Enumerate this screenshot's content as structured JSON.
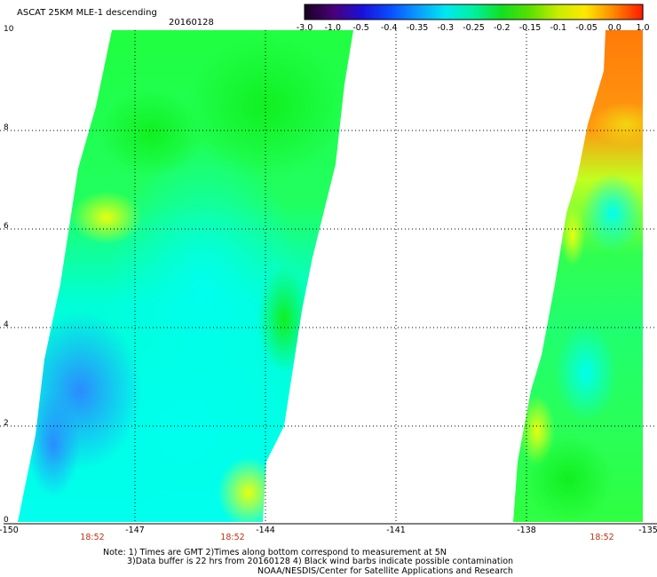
{
  "header": {
    "title": "ASCAT 25KM MLE-1 descending",
    "date": "20160128"
  },
  "colorbar": {
    "labels": [
      "-3.0",
      "-1.0",
      "-0.5",
      "-0.4",
      "-0.35",
      "-0.3",
      "-0.25",
      "-0.2",
      "-0.15",
      "-0.1",
      "-0.05",
      "0.0",
      "1.0"
    ],
    "colors": [
      "#1a0026",
      "#4a007a",
      "#1a10d8",
      "#0a4cff",
      "#0a9cff",
      "#00e8f0",
      "#00f0a0",
      "#10e020",
      "#58e000",
      "#c8ec00",
      "#ffe800",
      "#ff8800",
      "#ff2000"
    ]
  },
  "map": {
    "lon_range": [
      -150,
      -135
    ],
    "lat_range": [
      0,
      10
    ],
    "x_ticks": [
      "-150",
      "-147",
      "-144",
      "-141",
      "-138",
      "-135"
    ],
    "y_ticks": [
      "0",
      "2",
      "4",
      "6",
      "8",
      "10"
    ],
    "pass_times": [
      {
        "lon": -148.0,
        "label": "18:52"
      },
      {
        "lon": -144.8,
        "label": "18:52"
      },
      {
        "lon": -136.5,
        "label": "18:52"
      }
    ],
    "colors": {
      "blue": "#2080ff",
      "cyan": "#00ffee",
      "green": "#20ff20",
      "yellow": "#f0ff10",
      "orange": "#ff8810"
    }
  },
  "notes": [
    "Note: 1) Times are GMT 2)Times along bottom correspond to measurement at 5N",
    "3)Data buffer is 22 hrs from 20160128 4) Black wind barbs indicate possible contamination",
    "NOAA/NESDIS/Center for Satellite Applications and Research"
  ]
}
